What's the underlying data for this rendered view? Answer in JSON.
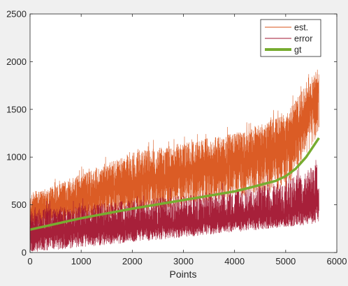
{
  "chart_data": {
    "type": "line",
    "title": "",
    "xlabel": "Points",
    "ylabel": "",
    "xlim": [
      0,
      6000
    ],
    "ylim": [
      0,
      2500
    ],
    "x_ticks": [
      "0",
      "1000",
      "2000",
      "3000",
      "4000",
      "5000",
      "6000"
    ],
    "y_ticks": [
      "0",
      "500",
      "1000",
      "1500",
      "2000",
      "2500"
    ],
    "n_points": 5650,
    "grid": false,
    "legend_position": "top-right",
    "series": [
      {
        "name": "est.",
        "color": "#d95319",
        "style": "noisy-line",
        "center": {
          "x": [
            0,
            500,
            1000,
            2000,
            3000,
            4000,
            4500,
            5000,
            5300,
            5500,
            5650
          ],
          "y": [
            400,
            470,
            560,
            700,
            830,
            950,
            1030,
            1150,
            1350,
            1550,
            1700
          ]
        },
        "spread_low": {
          "x": [
            0,
            5000,
            5650
          ],
          "y": [
            250,
            650,
            1250
          ]
        },
        "spread_high": {
          "x": [
            0,
            2000,
            4000,
            5000,
            5650
          ],
          "y": [
            600,
            1050,
            1250,
            1450,
            1950
          ]
        }
      },
      {
        "name": "error",
        "color": "#a2142f",
        "style": "noisy-line",
        "center": {
          "x": [
            0,
            1000,
            2000,
            3000,
            4000,
            5000,
            5650
          ],
          "y": [
            190,
            230,
            260,
            300,
            350,
            400,
            520
          ]
        },
        "spread_low": {
          "x": [
            0,
            5650
          ],
          "y": [
            0,
            300
          ]
        },
        "spread_high": {
          "x": [
            0,
            2000,
            4000,
            5000,
            5650
          ],
          "y": [
            450,
            550,
            650,
            750,
            950
          ]
        }
      },
      {
        "name": "gt",
        "color": "#77ac30",
        "style": "thick-line",
        "x": [
          0,
          1000,
          2000,
          3000,
          4000,
          4300,
          4800,
          5000,
          5200,
          5400,
          5650
        ],
        "y": [
          240,
          360,
          460,
          550,
          640,
          680,
          750,
          800,
          880,
          1000,
          1200
        ]
      }
    ]
  }
}
